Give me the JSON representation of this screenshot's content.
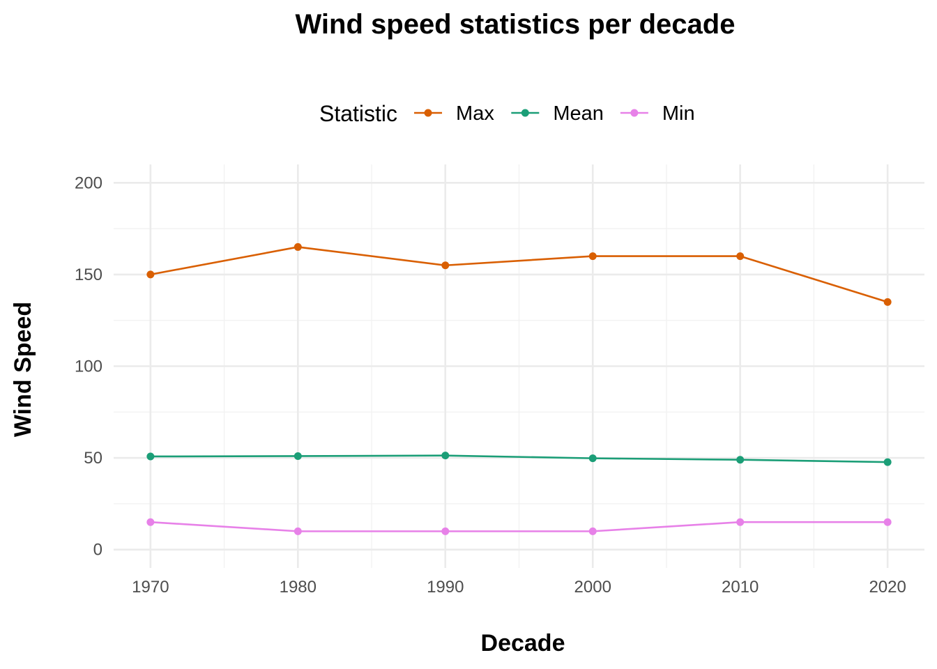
{
  "chart_data": {
    "type": "line",
    "title": "Wind speed statistics per decade",
    "xlabel": "Decade",
    "ylabel": "Wind Speed",
    "x": [
      1970,
      1980,
      1990,
      2000,
      2010,
      2020
    ],
    "x_ticks": [
      "1970",
      "1980",
      "1990",
      "2000",
      "2010",
      "2020"
    ],
    "y_ticks": [
      "0",
      "50",
      "100",
      "150",
      "200"
    ],
    "xlim": [
      1967.5,
      2022.5
    ],
    "ylim": [
      -10,
      210
    ],
    "grid": true,
    "legend": {
      "title": "Statistic",
      "position": "top"
    },
    "series": [
      {
        "name": "Max",
        "color": "#d95f02",
        "values": [
          150,
          165,
          155,
          160,
          160,
          135
        ]
      },
      {
        "name": "Mean",
        "color": "#1b9e77",
        "values": [
          50.8,
          51,
          51.3,
          49.8,
          49,
          47.7
        ]
      },
      {
        "name": "Min",
        "color": "#e781e8",
        "values": [
          15,
          10,
          10,
          10,
          15,
          15
        ]
      }
    ]
  }
}
